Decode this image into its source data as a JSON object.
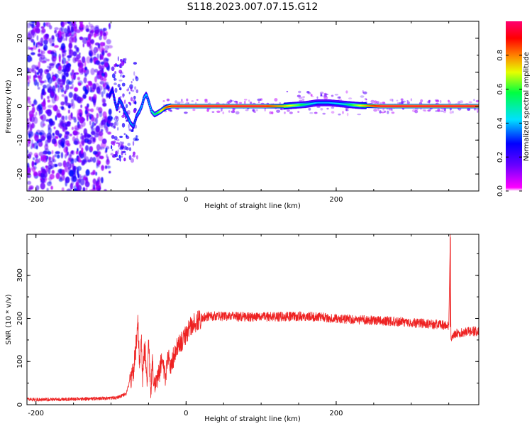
{
  "title": "S118.2023.007.07.15.G12",
  "chart_data": [
    {
      "type": "heatmap",
      "xlabel": "Height of straight line (km)",
      "ylabel": "Frequency (Hz)",
      "xlim": [
        -212,
        390
      ],
      "ylim": [
        -25,
        25
      ],
      "x_ticks": [
        -200,
        0,
        200
      ],
      "y_ticks": [
        -20,
        -10,
        0,
        10,
        20
      ],
      "grid": false,
      "colorbar": {
        "label": "Normalized spectral amplitude",
        "range": [
          0,
          1
        ],
        "ticks": [
          "0.0",
          "0.2",
          "0.4",
          "0.6",
          "0.8"
        ],
        "colormap": [
          "#ff00ff",
          "#5500ff",
          "#0000ff",
          "#00e0ff",
          "#00ff40",
          "#ffff00",
          "#ff8000",
          "#ff0000",
          "#ff0060"
        ]
      },
      "ridge_path": {
        "x": [
          -102,
          -98,
          -95,
          -92,
          -89,
          -85,
          -82,
          -78,
          -74,
          -70,
          -66,
          -62,
          -59,
          -56,
          -53,
          -50,
          -46,
          -42,
          -38,
          -34,
          -30,
          -26,
          -20,
          0,
          100,
          130,
          160,
          175,
          190,
          210,
          230,
          260,
          390
        ],
        "y": [
          3,
          5,
          1.5,
          -1,
          2,
          0.5,
          -1.5,
          -3,
          -5,
          -6,
          -3,
          -1.5,
          0,
          2.5,
          3.5,
          1.5,
          -1.5,
          -2.5,
          -2,
          -1.5,
          -0.8,
          -0.3,
          0,
          0,
          0,
          0,
          0.5,
          1.0,
          1.0,
          0.6,
          0.2,
          0,
          0
        ],
        "amplitude": [
          0.25,
          0.25,
          0.3,
          0.3,
          0.3,
          0.3,
          0.3,
          0.3,
          0.35,
          0.3,
          0.3,
          0.35,
          0.35,
          0.35,
          0.35,
          0.35,
          0.4,
          0.45,
          0.5,
          0.6,
          0.7,
          0.8,
          0.9,
          0.95,
          0.95,
          0.7,
          0.45,
          0.35,
          0.35,
          0.4,
          0.6,
          0.95,
          0.95
        ]
      }
    },
    {
      "type": "line",
      "xlabel": "Height of straight line (km)",
      "ylabel": "SNR (10 * v/v)",
      "xlim": [
        -212,
        390
      ],
      "ylim": [
        0,
        395
      ],
      "x_ticks": [
        -200,
        0,
        200
      ],
      "y_ticks": [
        0,
        100,
        200,
        300
      ],
      "grid": false,
      "line_color": "#ee2222",
      "series": [
        {
          "x": [
            -212,
            -180,
            -150,
            -120,
            -100,
            -90,
            -80,
            -75,
            -70,
            -66,
            -64,
            -62,
            -60,
            -58,
            -55,
            -52,
            -50,
            -47,
            -45,
            -43,
            -40,
            -36,
            -32,
            -28,
            -24,
            -20,
            -15,
            -10,
            -5,
            0,
            5,
            10,
            15,
            20,
            25,
            30,
            40,
            60,
            80,
            100,
            120,
            150,
            180,
            200,
            220,
            250,
            280,
            300,
            320,
            340,
            350,
            352,
            353,
            354,
            356,
            360,
            370,
            380,
            390
          ],
          "y": [
            12,
            12,
            13,
            14,
            15,
            17,
            25,
            55,
            80,
            150,
            190,
            90,
            170,
            60,
            140,
            30,
            150,
            25,
            100,
            40,
            55,
            70,
            110,
            60,
            110,
            90,
            120,
            140,
            150,
            160,
            180,
            190,
            195,
            200,
            203,
            205,
            205,
            205,
            203,
            203,
            204,
            205,
            203,
            200,
            198,
            196,
            193,
            190,
            188,
            185,
            183,
            388,
            150,
            155,
            160,
            165,
            168,
            170,
            170
          ]
        }
      ]
    }
  ]
}
